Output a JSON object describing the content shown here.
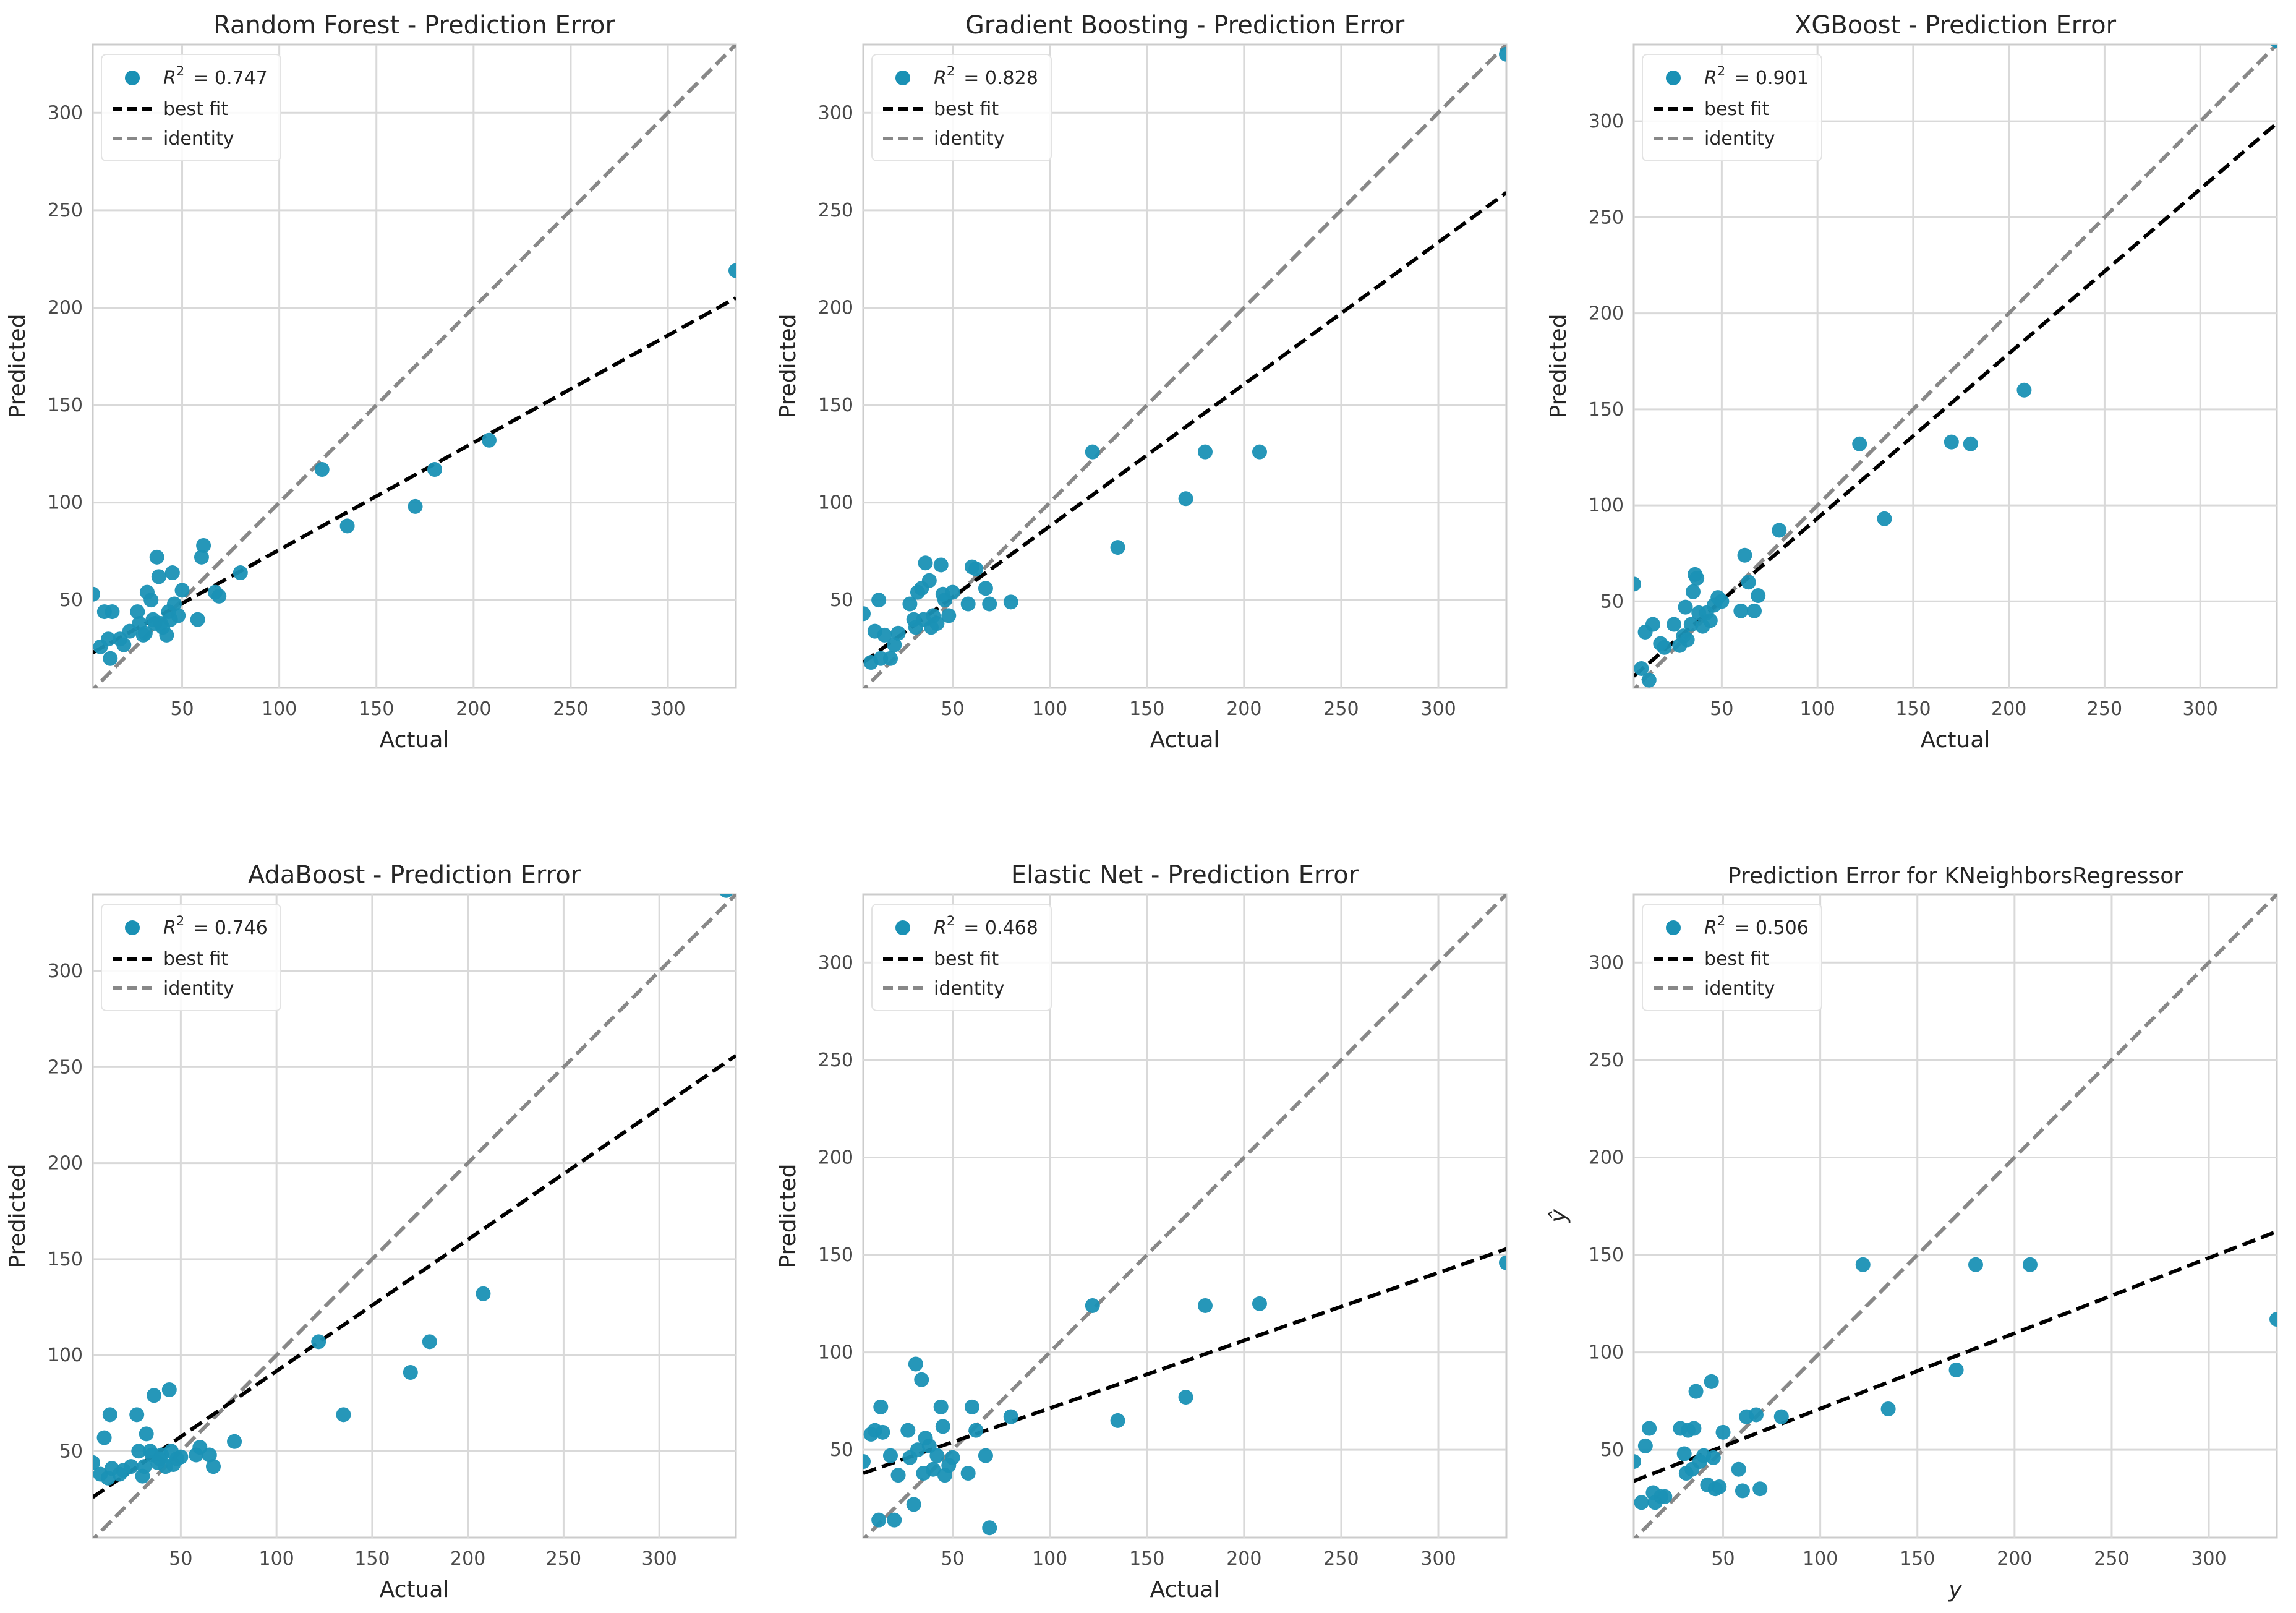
{
  "colors": {
    "point": "#1a91b5",
    "best_fit": "#000000",
    "identity": "#888888",
    "grid": "#d9d9d9"
  },
  "chart_data": [
    {
      "type": "scatter",
      "title": "Random Forest - Prediction Error",
      "xlabel": "Actual",
      "ylabel": "Predicted",
      "xlim": [
        4,
        335
      ],
      "ylim": [
        5,
        335
      ],
      "xticks": [
        50,
        100,
        150,
        200,
        250,
        300
      ],
      "yticks": [
        50,
        100,
        150,
        200,
        250,
        300
      ],
      "legend": {
        "r2_symbol": "R",
        "r2_sup": "2",
        "r2_value": "= 0.747",
        "best_fit": "best fit",
        "identity": "identity"
      },
      "best_fit": {
        "x": [
          4,
          335
        ],
        "y": [
          23,
          205
        ]
      },
      "points": [
        [
          4,
          53
        ],
        [
          8,
          26
        ],
        [
          10,
          44
        ],
        [
          12,
          30
        ],
        [
          13,
          20
        ],
        [
          14,
          44
        ],
        [
          18,
          30
        ],
        [
          20,
          27
        ],
        [
          23,
          34
        ],
        [
          27,
          44
        ],
        [
          28,
          38
        ],
        [
          30,
          32
        ],
        [
          31,
          33
        ],
        [
          32,
          54
        ],
        [
          34,
          50
        ],
        [
          35,
          40
        ],
        [
          36,
          38
        ],
        [
          37,
          72
        ],
        [
          38,
          62
        ],
        [
          39,
          38
        ],
        [
          40,
          36
        ],
        [
          42,
          32
        ],
        [
          43,
          44
        ],
        [
          44,
          40
        ],
        [
          45,
          64
        ],
        [
          46,
          48
        ],
        [
          48,
          42
        ],
        [
          50,
          55
        ],
        [
          58,
          40
        ],
        [
          60,
          72
        ],
        [
          61,
          78
        ],
        [
          67,
          54
        ],
        [
          69,
          52
        ],
        [
          80,
          64
        ],
        [
          122,
          117
        ],
        [
          135,
          88
        ],
        [
          170,
          98
        ],
        [
          180,
          117
        ],
        [
          208,
          132
        ],
        [
          335,
          219
        ]
      ]
    },
    {
      "type": "scatter",
      "title": "Gradient Boosting - Prediction Error",
      "xlabel": "Actual",
      "ylabel": "Predicted",
      "xlim": [
        4,
        335
      ],
      "ylim": [
        5,
        335
      ],
      "xticks": [
        50,
        100,
        150,
        200,
        250,
        300
      ],
      "yticks": [
        50,
        100,
        150,
        200,
        250,
        300
      ],
      "legend": {
        "r2_symbol": "R",
        "r2_sup": "2",
        "r2_value": "= 0.828",
        "best_fit": "best fit",
        "identity": "identity"
      },
      "best_fit": {
        "x": [
          4,
          335
        ],
        "y": [
          18,
          259
        ]
      },
      "points": [
        [
          4,
          43
        ],
        [
          8,
          18
        ],
        [
          10,
          34
        ],
        [
          12,
          50
        ],
        [
          13,
          20
        ],
        [
          15,
          32
        ],
        [
          18,
          20
        ],
        [
          20,
          27
        ],
        [
          22,
          33
        ],
        [
          28,
          48
        ],
        [
          30,
          40
        ],
        [
          31,
          36
        ],
        [
          32,
          54
        ],
        [
          34,
          56
        ],
        [
          35,
          40
        ],
        [
          36,
          69
        ],
        [
          38,
          60
        ],
        [
          39,
          36
        ],
        [
          40,
          42
        ],
        [
          42,
          38
        ],
        [
          44,
          68
        ],
        [
          45,
          53
        ],
        [
          46,
          50
        ],
        [
          48,
          42
        ],
        [
          50,
          54
        ],
        [
          58,
          48
        ],
        [
          60,
          67
        ],
        [
          62,
          66
        ],
        [
          67,
          56
        ],
        [
          69,
          48
        ],
        [
          80,
          49
        ],
        [
          122,
          126
        ],
        [
          135,
          77
        ],
        [
          170,
          102
        ],
        [
          180,
          126
        ],
        [
          208,
          126
        ],
        [
          335,
          330
        ]
      ]
    },
    {
      "type": "scatter",
      "title": "XGBoost - Prediction Error",
      "xlabel": "Actual",
      "ylabel": "Predicted",
      "xlim": [
        4,
        340
      ],
      "ylim": [
        5,
        340
      ],
      "xticks": [
        50,
        100,
        150,
        200,
        250,
        300
      ],
      "yticks": [
        50,
        100,
        150,
        200,
        250,
        300
      ],
      "legend": {
        "r2_symbol": "R",
        "r2_sup": "2",
        "r2_value": "= 0.901",
        "best_fit": "best fit",
        "identity": "identity"
      },
      "best_fit": {
        "x": [
          4,
          340
        ],
        "y": [
          11,
          299
        ]
      },
      "points": [
        [
          4,
          59
        ],
        [
          8,
          15
        ],
        [
          10,
          34
        ],
        [
          12,
          9
        ],
        [
          14,
          38
        ],
        [
          18,
          28
        ],
        [
          20,
          26
        ],
        [
          25,
          38
        ],
        [
          28,
          27
        ],
        [
          30,
          32
        ],
        [
          31,
          47
        ],
        [
          32,
          30
        ],
        [
          34,
          38
        ],
        [
          35,
          55
        ],
        [
          36,
          64
        ],
        [
          37,
          62
        ],
        [
          38,
          44
        ],
        [
          40,
          37
        ],
        [
          42,
          44
        ],
        [
          44,
          40
        ],
        [
          46,
          48
        ],
        [
          48,
          52
        ],
        [
          50,
          50
        ],
        [
          60,
          45
        ],
        [
          62,
          74
        ],
        [
          64,
          60
        ],
        [
          67,
          45
        ],
        [
          69,
          53
        ],
        [
          80,
          87
        ],
        [
          122,
          132
        ],
        [
          135,
          93
        ],
        [
          170,
          133
        ],
        [
          180,
          132
        ],
        [
          208,
          160
        ],
        [
          340,
          342
        ]
      ]
    },
    {
      "type": "scatter",
      "title": "AdaBoost - Prediction Error",
      "xlabel": "Actual",
      "ylabel": "Predicted",
      "xlim": [
        4,
        340
      ],
      "ylim": [
        5,
        340
      ],
      "xticks": [
        50,
        100,
        150,
        200,
        250,
        300
      ],
      "yticks": [
        50,
        100,
        150,
        200,
        250,
        300
      ],
      "legend": {
        "r2_symbol": "R",
        "r2_sup": "2",
        "r2_value": "= 0.746",
        "best_fit": "best fit",
        "identity": "identity"
      },
      "best_fit": {
        "x": [
          4,
          340
        ],
        "y": [
          26,
          256
        ]
      },
      "points": [
        [
          4,
          44
        ],
        [
          8,
          38
        ],
        [
          10,
          57
        ],
        [
          12,
          36
        ],
        [
          13,
          69
        ],
        [
          14,
          41
        ],
        [
          18,
          38
        ],
        [
          20,
          40
        ],
        [
          24,
          42
        ],
        [
          27,
          69
        ],
        [
          28,
          50
        ],
        [
          30,
          37
        ],
        [
          31,
          42
        ],
        [
          32,
          59
        ],
        [
          34,
          50
        ],
        [
          35,
          48
        ],
        [
          36,
          79
        ],
        [
          38,
          44
        ],
        [
          39,
          46
        ],
        [
          40,
          48
        ],
        [
          42,
          42
        ],
        [
          44,
          82
        ],
        [
          45,
          50
        ],
        [
          46,
          43
        ],
        [
          48,
          46
        ],
        [
          50,
          47
        ],
        [
          58,
          48
        ],
        [
          60,
          52
        ],
        [
          65,
          48
        ],
        [
          67,
          42
        ],
        [
          78,
          55
        ],
        [
          122,
          107
        ],
        [
          135,
          69
        ],
        [
          170,
          91
        ],
        [
          180,
          107
        ],
        [
          208,
          132
        ],
        [
          335,
          342
        ]
      ]
    },
    {
      "type": "scatter",
      "title": "Elastic Net - Prediction Error",
      "xlabel": "Actual",
      "ylabel": "Predicted",
      "xlim": [
        4,
        335
      ],
      "ylim": [
        5,
        335
      ],
      "xticks": [
        50,
        100,
        150,
        200,
        250,
        300
      ],
      "yticks": [
        50,
        100,
        150,
        200,
        250,
        300
      ],
      "legend": {
        "r2_symbol": "R",
        "r2_sup": "2",
        "r2_value": "= 0.468",
        "best_fit": "best fit",
        "identity": "identity"
      },
      "best_fit": {
        "x": [
          4,
          335
        ],
        "y": [
          38,
          153
        ]
      },
      "points": [
        [
          4,
          44
        ],
        [
          8,
          58
        ],
        [
          10,
          60
        ],
        [
          12,
          14
        ],
        [
          13,
          72
        ],
        [
          14,
          59
        ],
        [
          18,
          47
        ],
        [
          20,
          14
        ],
        [
          22,
          37
        ],
        [
          27,
          60
        ],
        [
          28,
          46
        ],
        [
          30,
          22
        ],
        [
          31,
          94
        ],
        [
          32,
          50
        ],
        [
          34,
          86
        ],
        [
          35,
          38
        ],
        [
          36,
          56
        ],
        [
          38,
          52
        ],
        [
          40,
          40
        ],
        [
          42,
          47
        ],
        [
          44,
          72
        ],
        [
          45,
          62
        ],
        [
          46,
          37
        ],
        [
          48,
          42
        ],
        [
          50,
          46
        ],
        [
          58,
          38
        ],
        [
          60,
          72
        ],
        [
          62,
          60
        ],
        [
          67,
          47
        ],
        [
          69,
          10
        ],
        [
          80,
          67
        ],
        [
          122,
          124
        ],
        [
          135,
          65
        ],
        [
          170,
          77
        ],
        [
          180,
          124
        ],
        [
          208,
          125
        ],
        [
          335,
          146
        ]
      ]
    },
    {
      "type": "scatter",
      "title": "Prediction Error for KNeighborsRegressor",
      "xlabel": "y",
      "ylabel": "ŷ",
      "xlim": [
        4,
        335
      ],
      "ylim": [
        5,
        335
      ],
      "xticks": [
        50,
        100,
        150,
        200,
        250,
        300
      ],
      "yticks": [
        50,
        100,
        150,
        200,
        250,
        300
      ],
      "legend": {
        "r2_symbol": "R",
        "r2_sup": "2",
        "r2_value": "= 0.506",
        "best_fit": "best fit",
        "identity": "identity"
      },
      "best_fit": {
        "x": [
          4,
          335
        ],
        "y": [
          34,
          162
        ]
      },
      "points": [
        [
          4,
          44
        ],
        [
          8,
          23
        ],
        [
          10,
          52
        ],
        [
          12,
          61
        ],
        [
          14,
          28
        ],
        [
          15,
          23
        ],
        [
          18,
          26
        ],
        [
          20,
          26
        ],
        [
          28,
          61
        ],
        [
          30,
          48
        ],
        [
          31,
          38
        ],
        [
          32,
          60
        ],
        [
          34,
          40
        ],
        [
          35,
          61
        ],
        [
          36,
          80
        ],
        [
          38,
          44
        ],
        [
          40,
          47
        ],
        [
          42,
          32
        ],
        [
          44,
          85
        ],
        [
          45,
          46
        ],
        [
          46,
          30
        ],
        [
          48,
          31
        ],
        [
          50,
          59
        ],
        [
          58,
          40
        ],
        [
          60,
          29
        ],
        [
          62,
          67
        ],
        [
          67,
          68
        ],
        [
          69,
          30
        ],
        [
          80,
          67
        ],
        [
          122,
          145
        ],
        [
          135,
          71
        ],
        [
          170,
          91
        ],
        [
          180,
          145
        ],
        [
          208,
          145
        ],
        [
          335,
          117
        ]
      ]
    }
  ]
}
